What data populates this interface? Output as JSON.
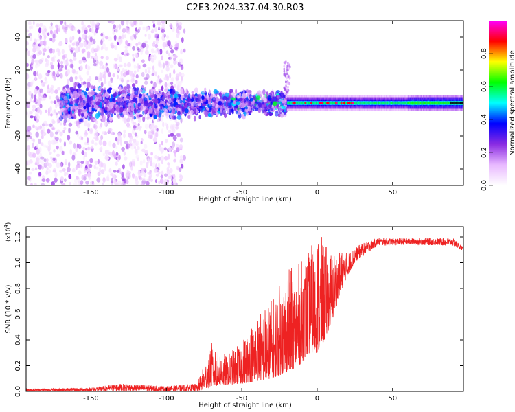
{
  "title": "C2E3.2024.337.04.30.R03",
  "chart_data": [
    {
      "type": "heatmap",
      "xlabel": "Height of straight line (km)",
      "ylabel": "Frequency (Hz)",
      "xlim": [
        -193,
        97
      ],
      "ylim": [
        -50,
        50
      ],
      "xticks": [
        -150,
        -100,
        -50,
        0,
        50
      ],
      "yticks": [
        -40,
        -20,
        0,
        20,
        40
      ],
      "grid": false,
      "colorbar": {
        "label": "Normalized spectral amplitude",
        "range": [
          0,
          1
        ],
        "ticks": [
          "0.0",
          "0.2",
          "0.4",
          "0.6",
          "0.8"
        ],
        "colormap": [
          "#ffffff",
          "#e8b8ff",
          "#8a2be2",
          "#0000ff",
          "#00ffff",
          "#00ff00",
          "#ffff00",
          "#ff0000",
          "#ff00ff"
        ]
      },
      "description_bands": [
        {
          "x_range": [
            -193,
            -90
          ],
          "freq_range": [
            -50,
            50
          ],
          "amplitude": 0.15,
          "pattern": "scattered noise"
        },
        {
          "x_range": [
            -90,
            -20
          ],
          "freq_range": [
            -12,
            12
          ],
          "amplitude": 0.35,
          "pattern": "band"
        },
        {
          "x_range": [
            -20,
            97
          ],
          "freq_range": [
            -3,
            3
          ],
          "amplitude": 0.6,
          "pattern": "narrow band"
        }
      ]
    },
    {
      "type": "line",
      "xlabel": "Height of straight line (km)",
      "ylabel": "SNR (10 * v/v)",
      "scale_label": "(x10",
      "scale_exp": "4",
      "scale_close": ")",
      "xlim": [
        -193,
        97
      ],
      "ylim": [
        0,
        1.28
      ],
      "xticks": [
        -150,
        -100,
        -50,
        0,
        50
      ],
      "yticks": [
        "0.0",
        "0.2",
        "0.4",
        "0.6",
        "0.8",
        "1.0",
        "1.2"
      ],
      "grid": false,
      "series": [
        {
          "color": "#ee2222",
          "envelope": [
            {
              "x": -193,
              "lo": 0.0,
              "hi": 0.02
            },
            {
              "x": -150,
              "lo": 0.0,
              "hi": 0.03
            },
            {
              "x": -130,
              "lo": 0.0,
              "hi": 0.06
            },
            {
              "x": -100,
              "lo": 0.0,
              "hi": 0.04
            },
            {
              "x": -80,
              "lo": 0.0,
              "hi": 0.06
            },
            {
              "x": -75,
              "lo": 0.02,
              "hi": 0.2
            },
            {
              "x": -70,
              "lo": 0.04,
              "hi": 0.38
            },
            {
              "x": -60,
              "lo": 0.05,
              "hi": 0.28
            },
            {
              "x": -50,
              "lo": 0.06,
              "hi": 0.4
            },
            {
              "x": -40,
              "lo": 0.08,
              "hi": 0.6
            },
            {
              "x": -30,
              "lo": 0.1,
              "hi": 0.72
            },
            {
              "x": -20,
              "lo": 0.15,
              "hi": 0.95
            },
            {
              "x": -12,
              "lo": 0.2,
              "hi": 1.0
            },
            {
              "x": -5,
              "lo": 0.3,
              "hi": 1.1
            },
            {
              "x": 0,
              "lo": 0.3,
              "hi": 1.27
            },
            {
              "x": 5,
              "lo": 0.4,
              "hi": 1.15
            },
            {
              "x": 10,
              "lo": 0.55,
              "hi": 1.1
            },
            {
              "x": 15,
              "lo": 0.75,
              "hi": 1.1
            },
            {
              "x": 20,
              "lo": 0.9,
              "hi": 1.08
            },
            {
              "x": 25,
              "lo": 1.0,
              "hi": 1.12
            },
            {
              "x": 30,
              "lo": 1.05,
              "hi": 1.15
            },
            {
              "x": 40,
              "lo": 1.13,
              "hi": 1.19
            },
            {
              "x": 60,
              "lo": 1.14,
              "hi": 1.19
            },
            {
              "x": 90,
              "lo": 1.13,
              "hi": 1.19
            },
            {
              "x": 97,
              "lo": 1.09,
              "hi": 1.12
            }
          ]
        }
      ]
    }
  ]
}
